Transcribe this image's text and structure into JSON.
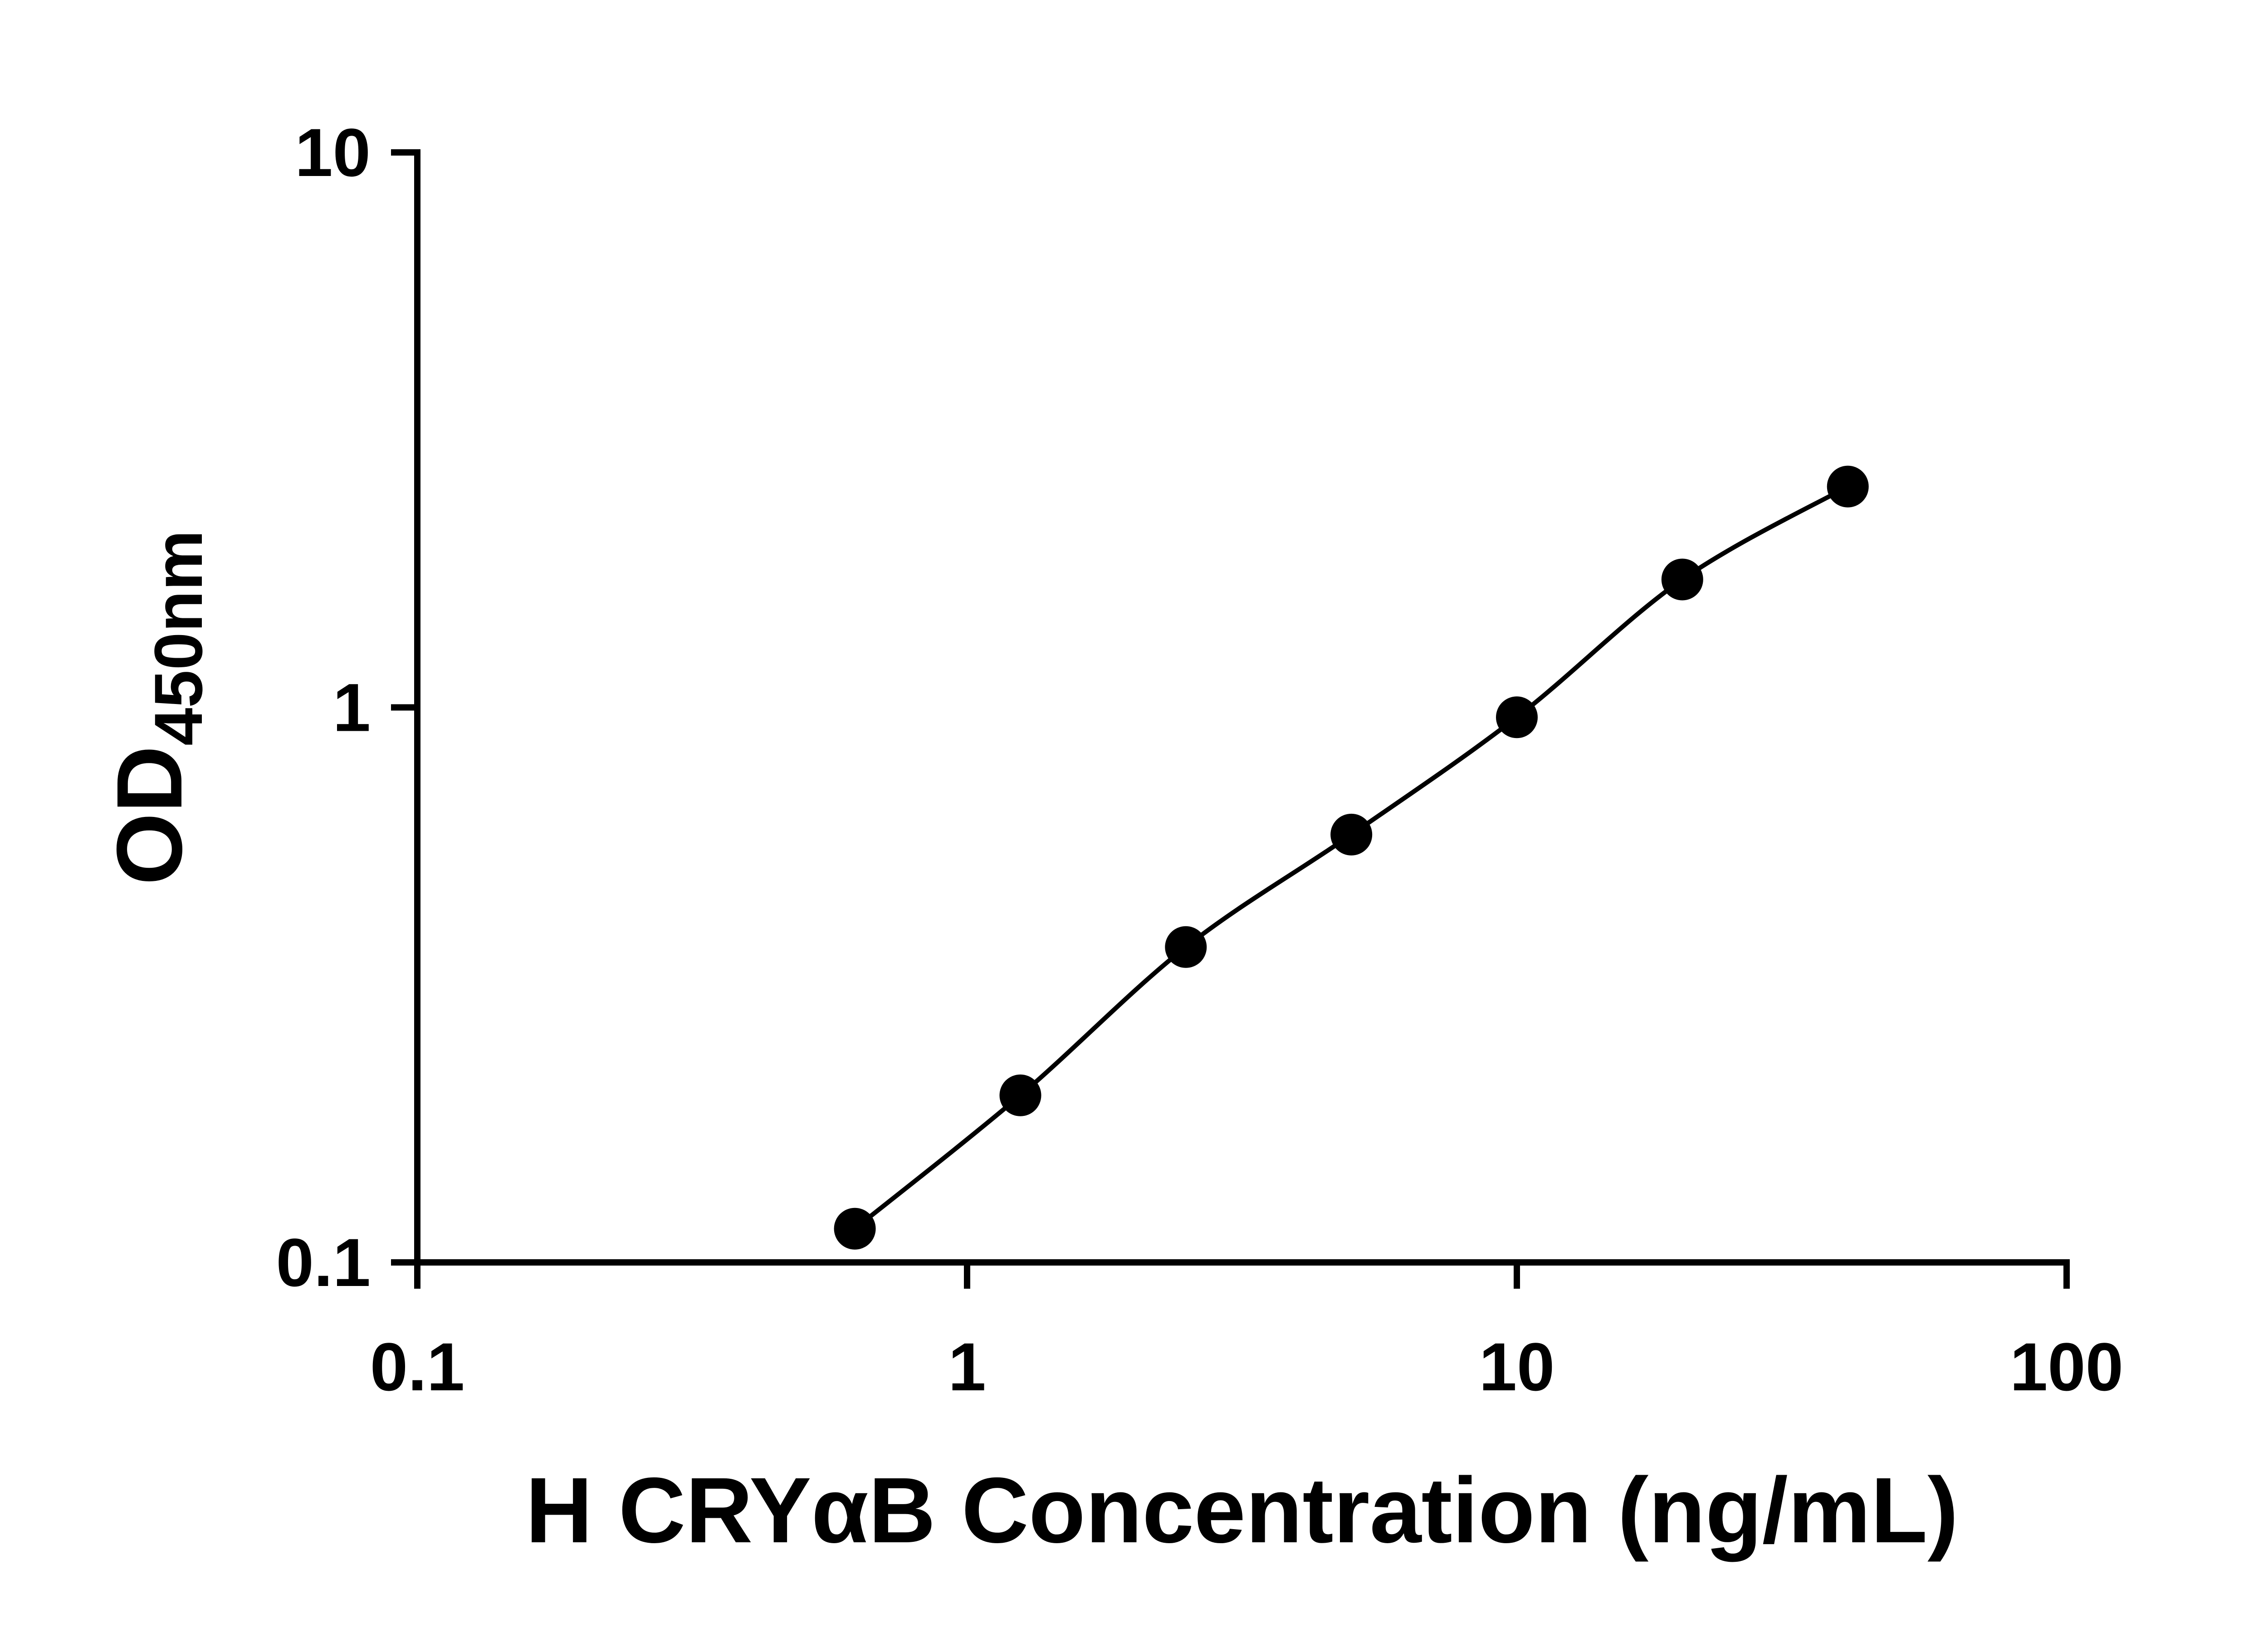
{
  "figure": {
    "background": "#ffffff",
    "description": "ELISA standard curve, log-log scatter plot with fitted curve"
  },
  "chart_data": {
    "type": "scatter",
    "x": [
      0.625,
      1.25,
      2.5,
      5,
      10,
      20,
      40
    ],
    "y": [
      0.115,
      0.2,
      0.37,
      0.59,
      0.96,
      1.7,
      2.5
    ],
    "x_scale": "log",
    "y_scale": "log",
    "xlim": [
      0.1,
      100
    ],
    "ylim": [
      0.1,
      10
    ],
    "x_ticks": [
      0.1,
      1,
      10,
      100
    ],
    "x_tick_labels": [
      "0.1",
      "1",
      "10",
      "100"
    ],
    "y_ticks": [
      0.1,
      1,
      10
    ],
    "y_tick_labels": [
      "0.1",
      "1",
      "10"
    ],
    "xlabel": "H CRYαB Concentration (ng/mL)",
    "ylabel_main": "OD",
    "ylabel_sub": "450nm",
    "title": "",
    "legend": [],
    "grid": false,
    "marker_color": "#000000",
    "line_color": "#000000",
    "axis_color": "#000000",
    "fit": "smooth curve through data points (4PL-style)"
  }
}
